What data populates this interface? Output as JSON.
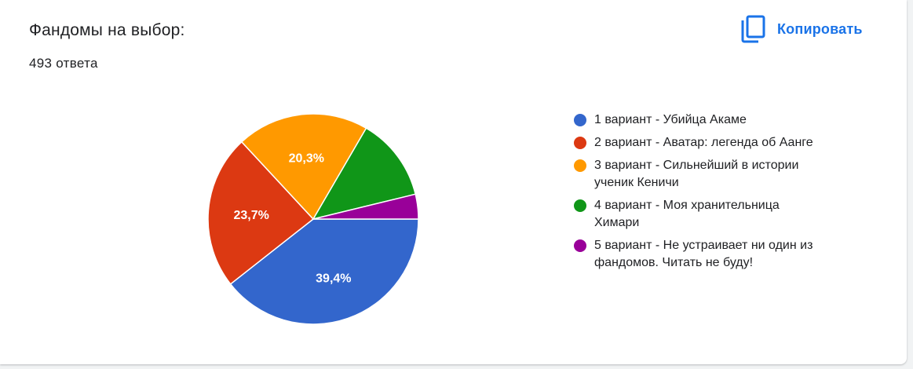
{
  "header": {
    "title": "Фандомы на выбор:",
    "count": "493 ответа",
    "copy_label": "Копировать",
    "copy_icon": "copy-icon",
    "accent": "#1a73e8"
  },
  "chart_data": {
    "type": "pie",
    "title": "Фандомы на выбор:",
    "total_responses": 493,
    "start_angle": "3 o'clock",
    "direction": "clockwise",
    "legend_position": "right",
    "slices": [
      {
        "label": "1 вариант - Убийца Акаме",
        "value": 39.4,
        "value_label": "39,4%",
        "color": "#3366cc"
      },
      {
        "label": "2 вариант - Аватар: легенда об Аанге",
        "value": 23.7,
        "value_label": "23,7%",
        "color": "#dc3912"
      },
      {
        "label": "3 вариант - Сильнейший в истории ученик Кеничи",
        "value": 20.3,
        "value_label": "20,3%",
        "color": "#ff9900"
      },
      {
        "label": "4 вариант - Моя хранительница Химари",
        "value": 12.8,
        "value_label": "",
        "color": "#109618"
      },
      {
        "label": "5 вариант - Не устраивает ни один из фандомов. Читать не буду!",
        "value": 3.8,
        "value_label": "",
        "color": "#990099"
      }
    ]
  }
}
